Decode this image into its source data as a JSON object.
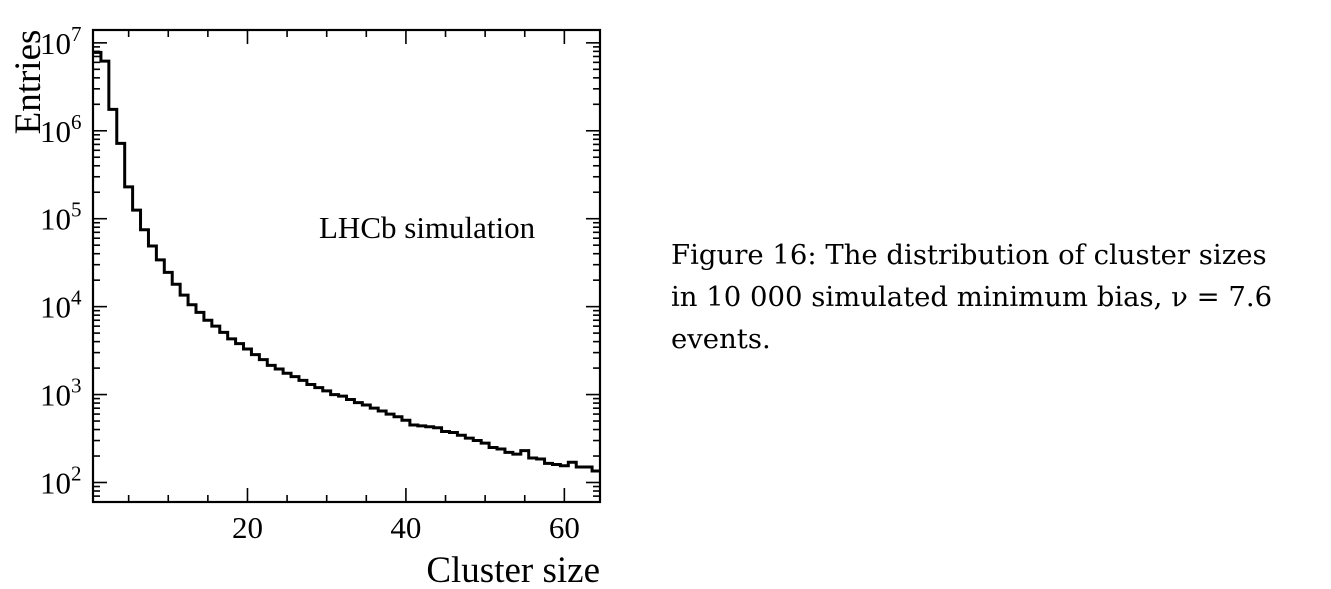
{
  "chart_data": {
    "type": "histogram",
    "xlabel": "Cluster size",
    "ylabel": "Entries",
    "yscale": "log",
    "annotation": "LHCb simulation",
    "xlim": [
      0.5,
      64.5
    ],
    "ylim": [
      60,
      14000000
    ],
    "xticks": [
      20,
      40,
      60
    ],
    "yticks": [
      {
        "base": "10",
        "exp": "2",
        "value": 100
      },
      {
        "base": "10",
        "exp": "3",
        "value": 1000
      },
      {
        "base": "10",
        "exp": "4",
        "value": 10000
      },
      {
        "base": "10",
        "exp": "5",
        "value": 100000
      },
      {
        "base": "10",
        "exp": "6",
        "value": 1000000
      },
      {
        "base": "10",
        "exp": "7",
        "value": 10000000
      }
    ],
    "grid": false,
    "bin_width": 1,
    "bin_centers": [
      1,
      2,
      3,
      4,
      5,
      6,
      7,
      8,
      9,
      10,
      11,
      12,
      13,
      14,
      15,
      16,
      17,
      18,
      19,
      20,
      21,
      22,
      23,
      24,
      25,
      26,
      27,
      28,
      29,
      30,
      31,
      32,
      33,
      34,
      35,
      36,
      37,
      38,
      39,
      40,
      41,
      42,
      43,
      44,
      45,
      46,
      47,
      48,
      49,
      50,
      51,
      52,
      53,
      54,
      55,
      56,
      57,
      58,
      59,
      60,
      61,
      62,
      63,
      64
    ],
    "values": [
      7800000,
      6200000,
      1750000,
      720000,
      230000,
      125000,
      75000,
      49000,
      34000,
      24500,
      18000,
      13500,
      10500,
      8600,
      7000,
      6000,
      5100,
      4300,
      3800,
      3300,
      2850,
      2500,
      2150,
      1950,
      1750,
      1600,
      1450,
      1300,
      1200,
      1100,
      1000,
      960,
      880,
      810,
      760,
      700,
      650,
      600,
      560,
      510,
      450,
      440,
      430,
      420,
      380,
      370,
      345,
      320,
      300,
      280,
      250,
      240,
      220,
      210,
      230,
      190,
      185,
      165,
      160,
      155,
      170,
      150,
      150,
      135
    ]
  },
  "caption": {
    "lines": [
      "Figure 16: The distribution of cluster sizes",
      "in 10 000 simulated minimum bias, ν = 7.6",
      "events."
    ]
  }
}
